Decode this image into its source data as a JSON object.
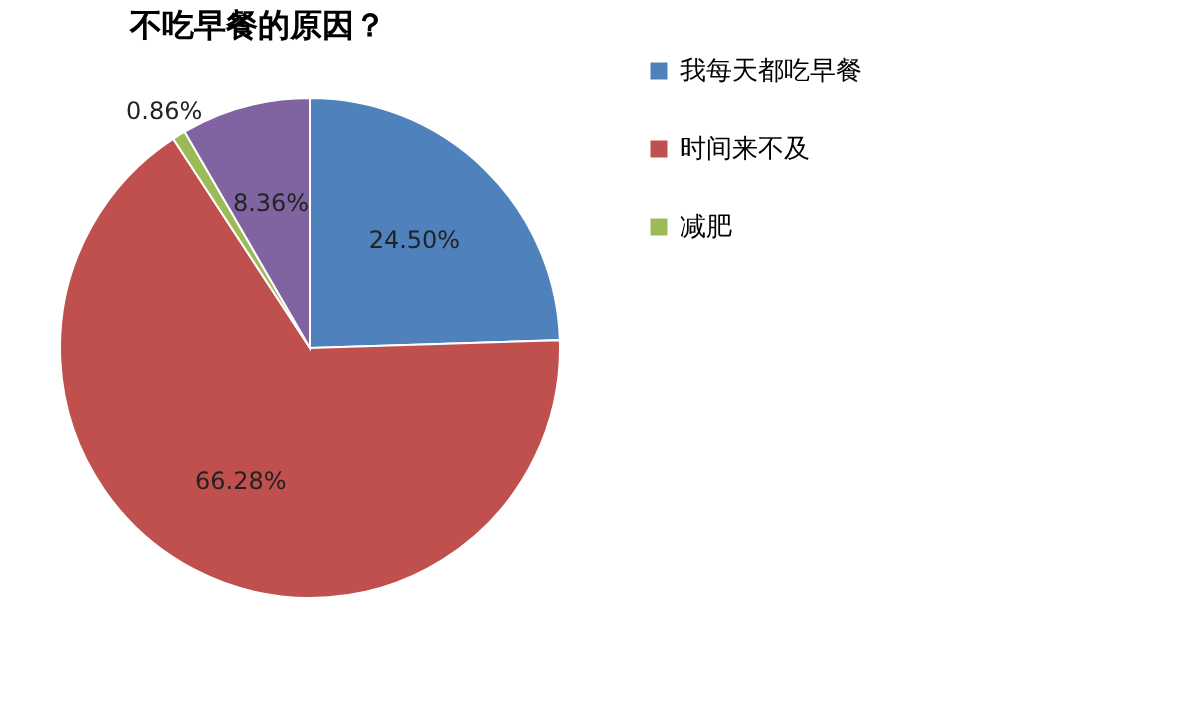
{
  "chart_data": {
    "type": "pie",
    "title": "不吃早餐的原因？",
    "categories": [
      "我每天都吃早餐",
      "时间来不及",
      "减肥",
      null
    ],
    "values": [
      24.5,
      66.28,
      0.86,
      8.36
    ],
    "value_labels": [
      "24.50%",
      "66.28%",
      "0.86%",
      "8.36%"
    ],
    "colors": [
      "#4f81bd",
      "#c0504d",
      "#9bbb59",
      "#8064a2"
    ],
    "legend": "right"
  }
}
